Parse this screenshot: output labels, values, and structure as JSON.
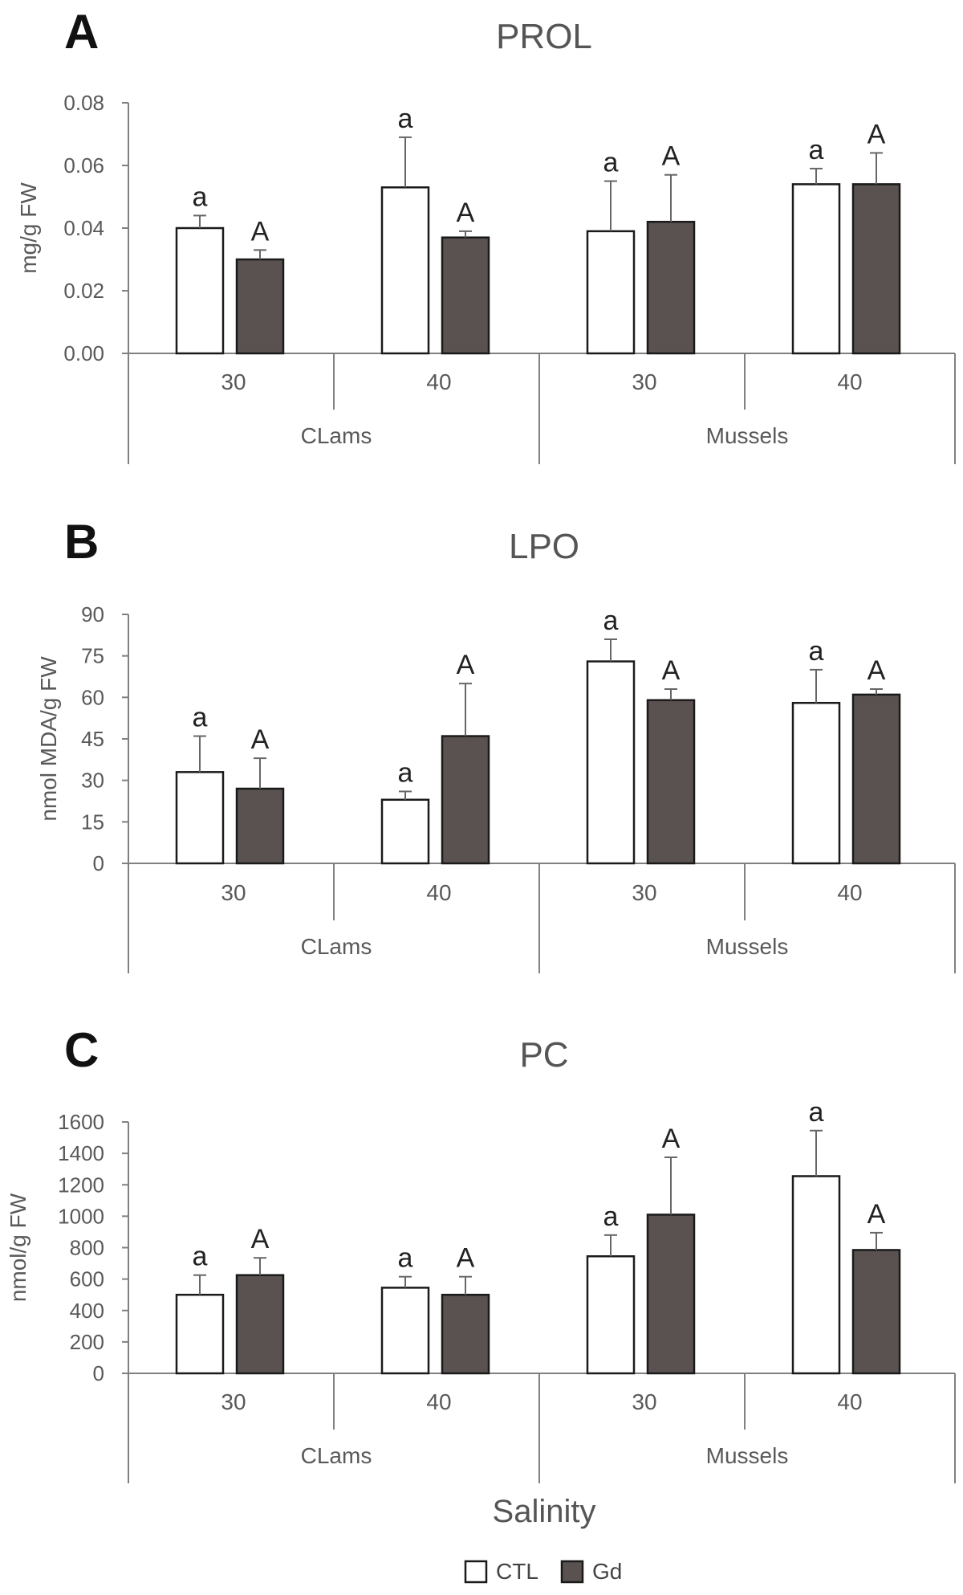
{
  "figure": {
    "xlabel": "Salinity",
    "legend": [
      {
        "name": "CTL",
        "color": "#ffffff"
      },
      {
        "name": "Gd",
        "color": "#595250"
      }
    ]
  },
  "colors": {
    "ctl_fill": "#ffffff",
    "gd_fill": "#595250",
    "bar_stroke": "#1a1a1a",
    "axis": "#808080"
  },
  "chart_data": [
    {
      "type": "bar",
      "panel": "A",
      "title": "PROL",
      "ylabel": "mg/g FW",
      "ylim": [
        0,
        0.08
      ],
      "yticks": [
        "0.00",
        "0.02",
        "0.04",
        "0.06",
        "0.08"
      ],
      "groups": [
        "CLams",
        "Mussels"
      ],
      "categories": [
        "30",
        "40",
        "30",
        "40"
      ],
      "series": [
        {
          "name": "CTL",
          "values": [
            0.04,
            0.053,
            0.039,
            0.054
          ],
          "errors": [
            0.004,
            0.016,
            0.016,
            0.005
          ],
          "labels": [
            "a",
            "a",
            "a",
            "a"
          ]
        },
        {
          "name": "Gd",
          "values": [
            0.03,
            0.037,
            0.042,
            0.054
          ],
          "errors": [
            0.003,
            0.002,
            0.015,
            0.01
          ],
          "labels": [
            "A",
            "A",
            "A",
            "A"
          ]
        }
      ]
    },
    {
      "type": "bar",
      "panel": "B",
      "title": "LPO",
      "ylabel": "nmol MDA/g FW",
      "ylim": [
        0,
        90
      ],
      "yticks": [
        "0",
        "15",
        "30",
        "45",
        "60",
        "75",
        "90"
      ],
      "groups": [
        "CLams",
        "Mussels"
      ],
      "categories": [
        "30",
        "40",
        "30",
        "40"
      ],
      "series": [
        {
          "name": "CTL",
          "values": [
            33,
            23,
            73,
            58
          ],
          "errors": [
            13,
            3,
            8,
            12
          ],
          "labels": [
            "a",
            "a",
            "a",
            "a"
          ]
        },
        {
          "name": "Gd",
          "values": [
            27,
            46,
            59,
            61
          ],
          "errors": [
            11,
            19,
            4,
            2
          ],
          "labels": [
            "A",
            "A",
            "A",
            "A"
          ]
        }
      ]
    },
    {
      "type": "bar",
      "panel": "C",
      "title": "PC",
      "ylabel": "nmol/g FW",
      "ylim": [
        0,
        1600
      ],
      "yticks": [
        "0",
        "200",
        "400",
        "600",
        "800",
        "1000",
        "1200",
        "1400",
        "1600"
      ],
      "groups": [
        "CLams",
        "Mussels"
      ],
      "categories": [
        "30",
        "40",
        "30",
        "40"
      ],
      "series": [
        {
          "name": "CTL",
          "values": [
            500,
            545,
            745,
            1255
          ],
          "errors": [
            125,
            70,
            135,
            290
          ],
          "labels": [
            "a",
            "a",
            "a",
            "a"
          ]
        },
        {
          "name": "Gd",
          "values": [
            625,
            500,
            1010,
            785
          ],
          "errors": [
            110,
            115,
            365,
            110
          ],
          "labels": [
            "A",
            "A",
            "A",
            "A"
          ]
        }
      ]
    }
  ]
}
